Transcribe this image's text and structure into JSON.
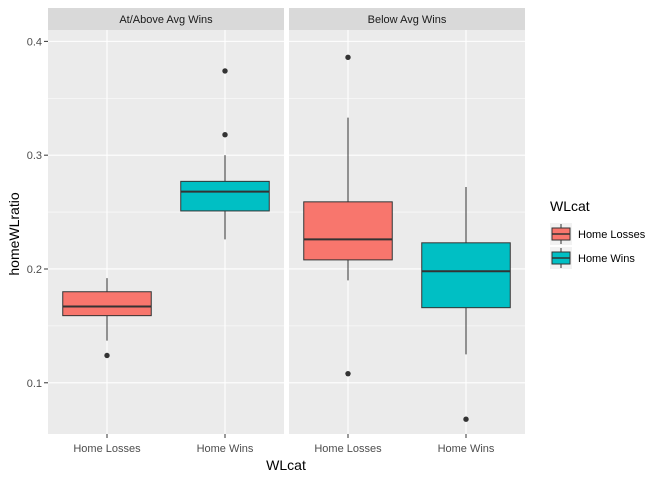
{
  "chart_data": {
    "type": "boxplot",
    "xlabel": "WLcat",
    "ylabel": "homeWLratio",
    "ylim": [
      0.055,
      0.41
    ],
    "yticks": [
      0.1,
      0.2,
      0.3,
      0.4
    ],
    "ytick_labels": [
      "0.1",
      "0.2",
      "0.3",
      "0.4"
    ],
    "grid": true,
    "legend": {
      "title": "WLcat",
      "position": "right",
      "entries": [
        {
          "label": "Home Losses",
          "color": "#F8766D"
        },
        {
          "label": "Home Wins",
          "color": "#00BFC4"
        }
      ]
    },
    "categories": [
      "Home Losses",
      "Home Wins"
    ],
    "facets": [
      {
        "label": "At/Above Avg Wins",
        "boxes": [
          {
            "category": "Home Losses",
            "whisker_low": 0.137,
            "q1": 0.159,
            "median": 0.167,
            "q3": 0.18,
            "whisker_high": 0.192,
            "outliers": [
              0.124
            ]
          },
          {
            "category": "Home Wins",
            "whisker_low": 0.226,
            "q1": 0.251,
            "median": 0.268,
            "q3": 0.277,
            "whisker_high": 0.3,
            "outliers": [
              0.318,
              0.374
            ]
          }
        ]
      },
      {
        "label": "Below Avg Wins",
        "boxes": [
          {
            "category": "Home Losses",
            "whisker_low": 0.19,
            "q1": 0.208,
            "median": 0.226,
            "q3": 0.259,
            "whisker_high": 0.333,
            "outliers": [
              0.108,
              0.386
            ]
          },
          {
            "category": "Home Wins",
            "whisker_low": 0.125,
            "q1": 0.166,
            "median": 0.198,
            "q3": 0.223,
            "whisker_high": 0.272,
            "outliers": [
              0.068
            ]
          }
        ]
      }
    ]
  }
}
